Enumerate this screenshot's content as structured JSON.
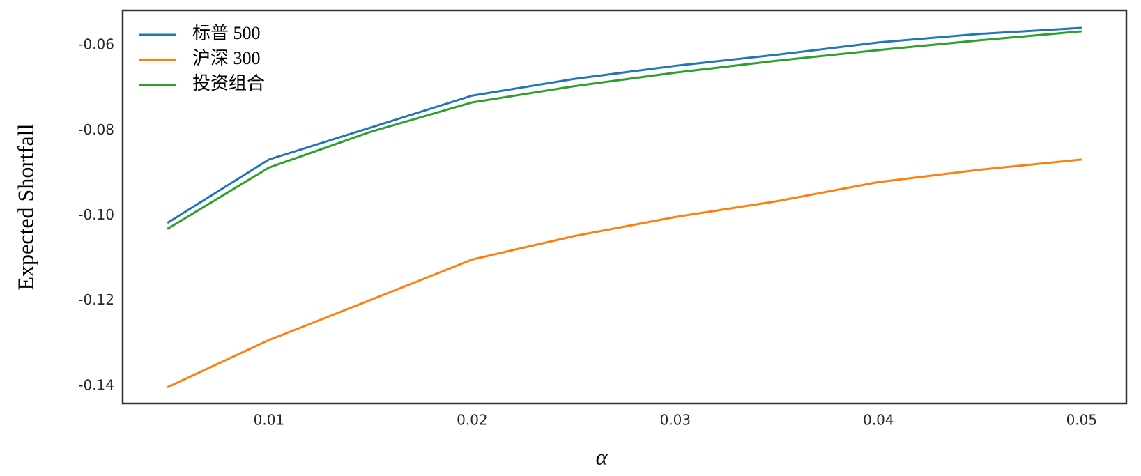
{
  "chart_data": {
    "type": "line",
    "x_label": "α",
    "y_label": "Expected Shortfall",
    "x": [
      0.005,
      0.01,
      0.015,
      0.02,
      0.025,
      0.03,
      0.035,
      0.04,
      0.045,
      0.05
    ],
    "series": [
      {
        "name": "标普 500",
        "color": "#1f77b4",
        "values": [
          -0.1017,
          -0.0868,
          -0.0793,
          -0.0718,
          -0.0679,
          -0.0648,
          -0.0622,
          -0.0593,
          -0.0573,
          -0.0559
        ]
      },
      {
        "name": "沪深 300",
        "color": "#ff7f0e",
        "values": [
          -0.1403,
          -0.1292,
          -0.1198,
          -0.1103,
          -0.1048,
          -0.1003,
          -0.0966,
          -0.0921,
          -0.0892,
          -0.0868
        ]
      },
      {
        "name": "投资组合",
        "color": "#2ca02c",
        "values": [
          -0.1031,
          -0.0887,
          -0.0803,
          -0.0734,
          -0.0696,
          -0.0664,
          -0.0636,
          -0.0611,
          -0.0588,
          -0.0567
        ]
      }
    ],
    "xlim": [
      0.0028,
      0.0522
    ],
    "xticks": [
      0.01,
      0.02,
      0.03,
      0.04,
      0.05
    ],
    "ylim": [
      -0.1441,
      -0.0518
    ],
    "yticks": [
      -0.14,
      -0.12,
      {
        "value": -0.1,
        "label": "-0.10"
      },
      -0.08,
      -0.06
    ],
    "grid": false,
    "legend": "upper left"
  }
}
